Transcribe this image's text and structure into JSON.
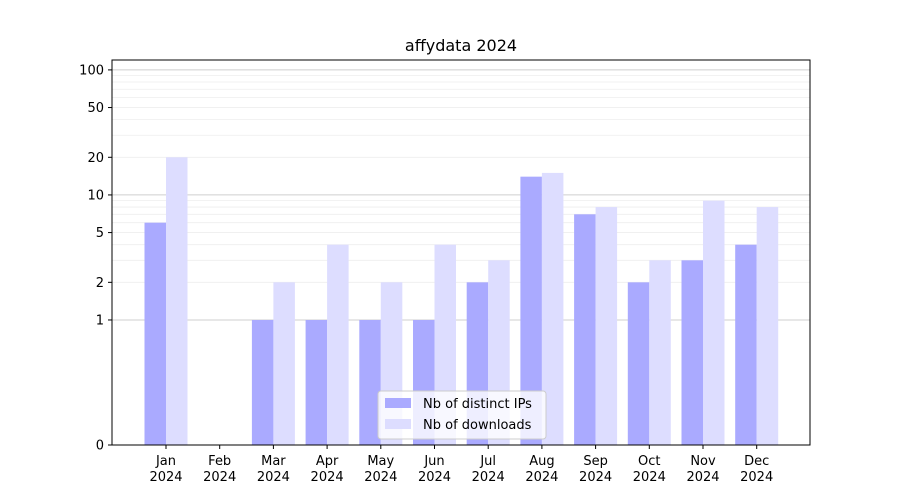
{
  "chart_data": {
    "type": "bar",
    "title": "affydata 2024",
    "xlabel": "",
    "ylabel": "",
    "yscale": "symlog",
    "ylim": [
      0,
      120
    ],
    "yticks": [
      0,
      1,
      2,
      5,
      10,
      20,
      50,
      100
    ],
    "grid": "horizontal",
    "legend_position": "bottom-center",
    "categories": [
      {
        "month": "Jan",
        "year": "2024"
      },
      {
        "month": "Feb",
        "year": "2024"
      },
      {
        "month": "Mar",
        "year": "2024"
      },
      {
        "month": "Apr",
        "year": "2024"
      },
      {
        "month": "May",
        "year": "2024"
      },
      {
        "month": "Jun",
        "year": "2024"
      },
      {
        "month": "Jul",
        "year": "2024"
      },
      {
        "month": "Aug",
        "year": "2024"
      },
      {
        "month": "Sep",
        "year": "2024"
      },
      {
        "month": "Oct",
        "year": "2024"
      },
      {
        "month": "Nov",
        "year": "2024"
      },
      {
        "month": "Dec",
        "year": "2024"
      }
    ],
    "series": [
      {
        "name": "Nb of distinct IPs",
        "color": "#aaaaff",
        "values": [
          6,
          0,
          1,
          1,
          1,
          1,
          2,
          14,
          7,
          2,
          3,
          4
        ]
      },
      {
        "name": "Nb of downloads",
        "color": "#ddddff",
        "values": [
          20,
          0,
          2,
          4,
          2,
          4,
          3,
          15,
          8,
          3,
          9,
          8
        ]
      }
    ]
  }
}
